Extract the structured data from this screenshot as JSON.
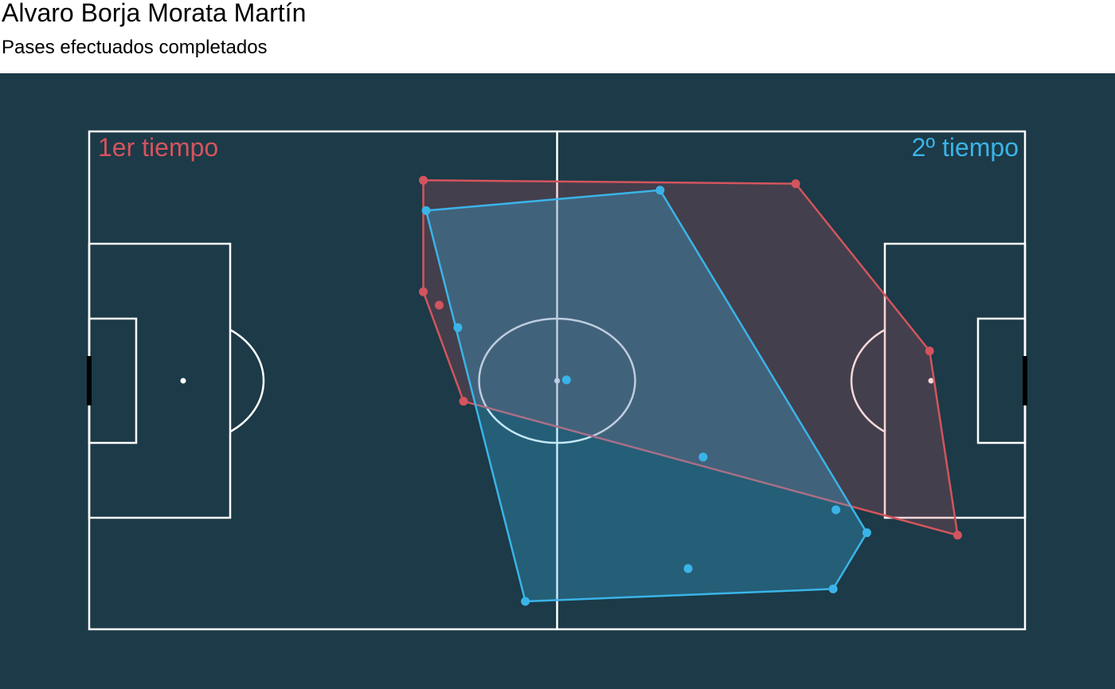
{
  "header": {
    "title": "Alvaro Borja Morata Martín",
    "subtitle": "Pases efectuados completados"
  },
  "colors": {
    "background": "#1c3a47",
    "lines": "#ffffff",
    "first_half": "#d4545e",
    "second_half": "#3ab4e8"
  },
  "chart_data": {
    "type": "scatter",
    "pitch": {
      "length": 100,
      "width": 100
    },
    "series": [
      {
        "name": "1er tiempo",
        "color": "#d4545e",
        "hull": true,
        "points": [
          {
            "x": 35.7,
            "y": 9.8
          },
          {
            "x": 75.5,
            "y": 10.5
          },
          {
            "x": 89.8,
            "y": 44.1
          },
          {
            "x": 92.8,
            "y": 81.1
          },
          {
            "x": 40.0,
            "y": 54.2
          },
          {
            "x": 35.7,
            "y": 32.2
          },
          {
            "x": 37.4,
            "y": 34.9
          }
        ]
      },
      {
        "name": "2º tiempo",
        "color": "#3ab4e8",
        "hull": true,
        "points": [
          {
            "x": 36.0,
            "y": 15.9
          },
          {
            "x": 61.0,
            "y": 11.8
          },
          {
            "x": 83.1,
            "y": 80.6
          },
          {
            "x": 79.5,
            "y": 91.9
          },
          {
            "x": 46.6,
            "y": 94.4
          },
          {
            "x": 39.4,
            "y": 39.4
          },
          {
            "x": 51.0,
            "y": 49.9
          },
          {
            "x": 65.6,
            "y": 65.4
          },
          {
            "x": 79.8,
            "y": 76.0
          },
          {
            "x": 64.0,
            "y": 87.8
          }
        ]
      }
    ]
  }
}
